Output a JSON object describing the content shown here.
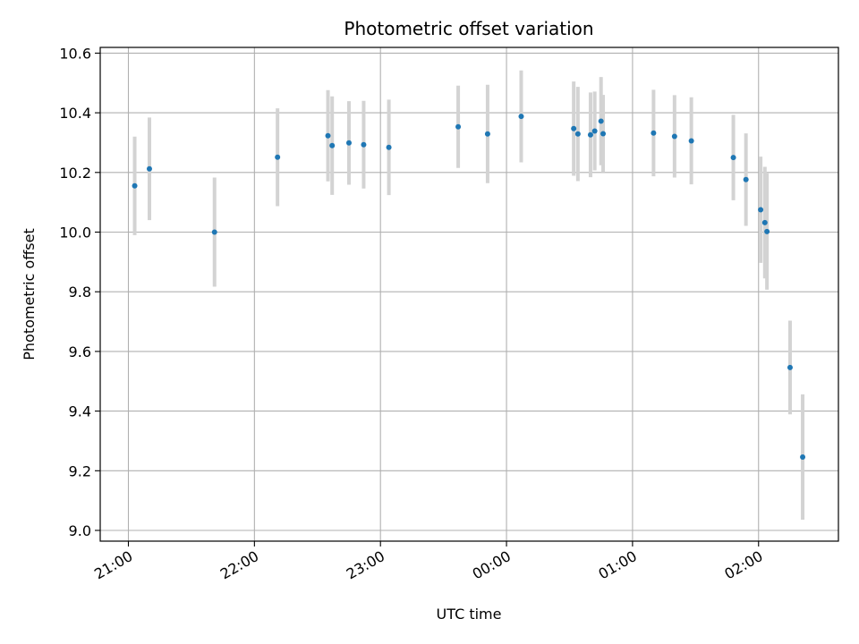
{
  "chart_data": {
    "type": "scatter",
    "title": "Photometric offset variation",
    "xlabel": "UTC time",
    "ylabel": "Photometric offset",
    "x_ticks": [
      "21:00",
      "22:00",
      "23:00",
      "00:00",
      "01:00",
      "02:00"
    ],
    "y_ticks": [
      "9.0",
      "9.2",
      "9.4",
      "9.6",
      "9.8",
      "10.0",
      "10.2",
      "10.4",
      "10.6"
    ],
    "grid": true,
    "colors": {
      "point": "#1f77b4",
      "errorbar": "#d3d3d3",
      "grid": "#b0b0b0"
    },
    "points": [
      {
        "t": "21:03",
        "y": 10.155,
        "err": 0.165
      },
      {
        "t": "21:10",
        "y": 10.212,
        "err": 0.172
      },
      {
        "t": "21:41",
        "y": 10.0,
        "err": 0.183
      },
      {
        "t": "22:11",
        "y": 10.251,
        "err": 0.164
      },
      {
        "t": "22:35",
        "y": 10.323,
        "err": 0.153
      },
      {
        "t": "22:37",
        "y": 10.29,
        "err": 0.165
      },
      {
        "t": "22:45",
        "y": 10.299,
        "err": 0.14
      },
      {
        "t": "22:52",
        "y": 10.293,
        "err": 0.147
      },
      {
        "t": "23:04",
        "y": 10.284,
        "err": 0.16
      },
      {
        "t": "23:37",
        "y": 10.353,
        "err": 0.138
      },
      {
        "t": "23:51",
        "y": 10.329,
        "err": 0.165
      },
      {
        "t": "00:07",
        "y": 10.388,
        "err": 0.154
      },
      {
        "t": "00:32",
        "y": 10.347,
        "err": 0.158
      },
      {
        "t": "00:34",
        "y": 10.329,
        "err": 0.158
      },
      {
        "t": "00:40",
        "y": 10.326,
        "err": 0.142
      },
      {
        "t": "00:42",
        "y": 10.339,
        "err": 0.132
      },
      {
        "t": "00:45",
        "y": 10.372,
        "err": 0.148
      },
      {
        "t": "00:46",
        "y": 10.33,
        "err": 0.13
      },
      {
        "t": "01:10",
        "y": 10.332,
        "err": 0.145
      },
      {
        "t": "01:20",
        "y": 10.321,
        "err": 0.138
      },
      {
        "t": "01:28",
        "y": 10.306,
        "err": 0.146
      },
      {
        "t": "01:48",
        "y": 10.25,
        "err": 0.143
      },
      {
        "t": "01:54",
        "y": 10.176,
        "err": 0.155
      },
      {
        "t": "02:01",
        "y": 10.075,
        "err": 0.178
      },
      {
        "t": "02:03",
        "y": 10.032,
        "err": 0.187
      },
      {
        "t": "02:04",
        "y": 10.002,
        "err": 0.195
      },
      {
        "t": "02:15",
        "y": 9.546,
        "err": 0.157
      },
      {
        "t": "02:21",
        "y": 9.246,
        "err": 0.21
      }
    ]
  }
}
